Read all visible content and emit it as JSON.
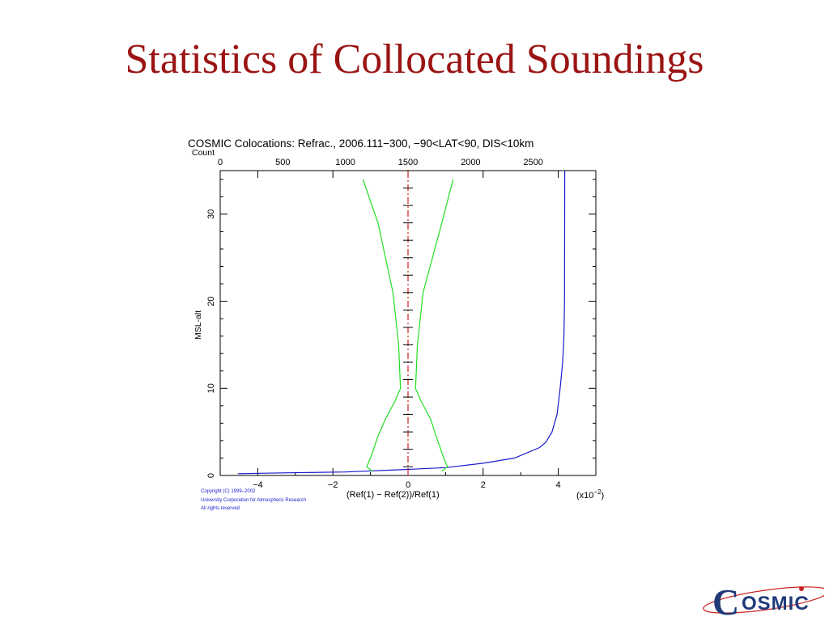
{
  "slide": {
    "title": "Statistics of Collocated Soundings"
  },
  "chart_data": {
    "type": "line",
    "title": "COSMIC Colocations: Refrac., 2006.111−300, −90<LAT<90, DIS<10km",
    "top_axis_label": "Count",
    "xlabel": "(Ref(1) − Ref(2))/Ref(1)",
    "x_multiplier_label": "(x10",
    "x_multiplier_exponent": "−2",
    "x_multiplier_close": ")",
    "ylabel": "MSL-alt",
    "xlim": [
      -5,
      5
    ],
    "ylim": [
      0,
      35
    ],
    "top_xlim": [
      0,
      3000
    ],
    "x_ticks": [
      -4,
      -2,
      0,
      2,
      4
    ],
    "x_tick_labels": [
      "−4",
      "−2",
      "0",
      "2",
      "4"
    ],
    "y_ticks": [
      0,
      10,
      20,
      30
    ],
    "y_tick_labels": [
      "0",
      "10",
      "20",
      "30"
    ],
    "top_ticks": [
      0,
      500,
      1000,
      1500,
      2000,
      2500
    ],
    "top_tick_labels": [
      "0",
      "500",
      "1000",
      "1500",
      "2000",
      "2500"
    ],
    "grid": false,
    "series": [
      {
        "color": "#1a1acc",
        "axis": "top",
        "points": [
          [
            141,
            0.2
          ],
          [
            500,
            0.3
          ],
          [
            1000,
            0.4
          ],
          [
            1500,
            0.7
          ],
          [
            1800,
            0.9
          ],
          [
            2100,
            1.4
          ],
          [
            2350,
            2.0
          ],
          [
            2550,
            3.2
          ],
          [
            2600,
            3.8
          ],
          [
            2650,
            5.0
          ],
          [
            2690,
            7.0
          ],
          [
            2715,
            10.0
          ],
          [
            2735,
            13.0
          ],
          [
            2745,
            16.0
          ],
          [
            2750,
            20.0
          ],
          [
            2752,
            35.0
          ]
        ]
      },
      {
        "color": "#22dd22",
        "axis": "bottom",
        "points": [
          [
            -1.2,
            34.0
          ],
          [
            -0.8,
            29.0
          ],
          [
            -0.4,
            21.0
          ],
          [
            -0.25,
            15.0
          ],
          [
            -0.2,
            10.0
          ],
          [
            -0.35,
            8.5
          ],
          [
            -0.6,
            6.5
          ],
          [
            -0.8,
            4.5
          ],
          [
            -1.0,
            2.0
          ],
          [
            -1.1,
            1.0
          ],
          [
            -0.95,
            0.5
          ]
        ]
      },
      {
        "color": "#22dd22",
        "axis": "bottom",
        "points": [
          [
            1.2,
            34.0
          ],
          [
            0.9,
            29.0
          ],
          [
            0.4,
            21.0
          ],
          [
            0.25,
            15.0
          ],
          [
            0.2,
            10.0
          ],
          [
            0.35,
            8.5
          ],
          [
            0.6,
            6.5
          ],
          [
            0.75,
            4.5
          ],
          [
            0.95,
            2.0
          ],
          [
            1.05,
            1.0
          ],
          [
            0.9,
            0.5
          ]
        ]
      },
      {
        "color": "#cc2222",
        "axis": "bottom",
        "dashed": true,
        "points": [
          [
            0.0,
            0.0
          ],
          [
            0.0,
            35.0
          ]
        ]
      }
    ],
    "mean_markers_y": [
      1,
      3,
      5,
      7,
      9,
      11,
      13,
      15,
      17,
      19,
      21,
      23,
      25,
      27,
      29,
      31,
      33
    ],
    "copyright": [
      "Copyright (C) 1999–2002",
      "University Corporation for Atmospheric Research",
      "All rights reserved"
    ],
    "copyright_color": "#1a1acc"
  },
  "logo": {
    "text": "OSMIC",
    "initial": "C",
    "color": "#203a7a",
    "swoosh_color": "#cc2222"
  }
}
